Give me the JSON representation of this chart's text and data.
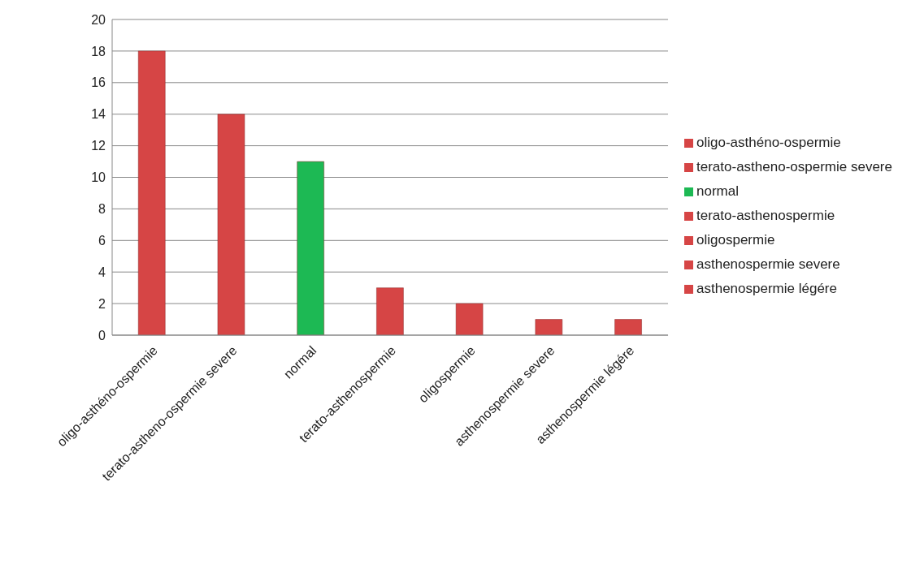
{
  "chart_data": {
    "type": "bar",
    "stacked": true,
    "categories": [
      "oligo-asthéno-ospermie",
      "terato-astheno-ospermie severe",
      "normal",
      "terato-asthenospermie",
      "oligospermie",
      "asthenospermie severe",
      "asthenospermie légére"
    ],
    "series": [
      {
        "name": "oligo-asthéno-ospermie",
        "color": "#d64545",
        "values": [
          18,
          null,
          null,
          null,
          null,
          null,
          null
        ]
      },
      {
        "name": "terato-astheno-ospermie severe",
        "color": "#d64545",
        "values": [
          null,
          14,
          null,
          null,
          null,
          null,
          null
        ]
      },
      {
        "name": "normal",
        "color": "#1db954",
        "values": [
          null,
          null,
          11,
          null,
          null,
          null,
          null
        ]
      },
      {
        "name": "terato-asthenospermie",
        "color": "#d64545",
        "values": [
          null,
          null,
          null,
          3,
          null,
          null,
          null
        ]
      },
      {
        "name": "oligospermie",
        "color": "#d64545",
        "values": [
          null,
          null,
          null,
          null,
          2,
          null,
          null
        ]
      },
      {
        "name": "asthenospermie severe",
        "color": "#d64545",
        "values": [
          null,
          null,
          null,
          null,
          null,
          1,
          null
        ]
      },
      {
        "name": "asthenospermie légére",
        "color": "#d64545",
        "values": [
          null,
          null,
          null,
          null,
          null,
          null,
          1
        ]
      }
    ],
    "ylim": [
      0,
      20
    ],
    "yticks": [
      0,
      2,
      4,
      6,
      8,
      10,
      12,
      14,
      16,
      18,
      20
    ],
    "grid": "y",
    "legend": "right"
  }
}
